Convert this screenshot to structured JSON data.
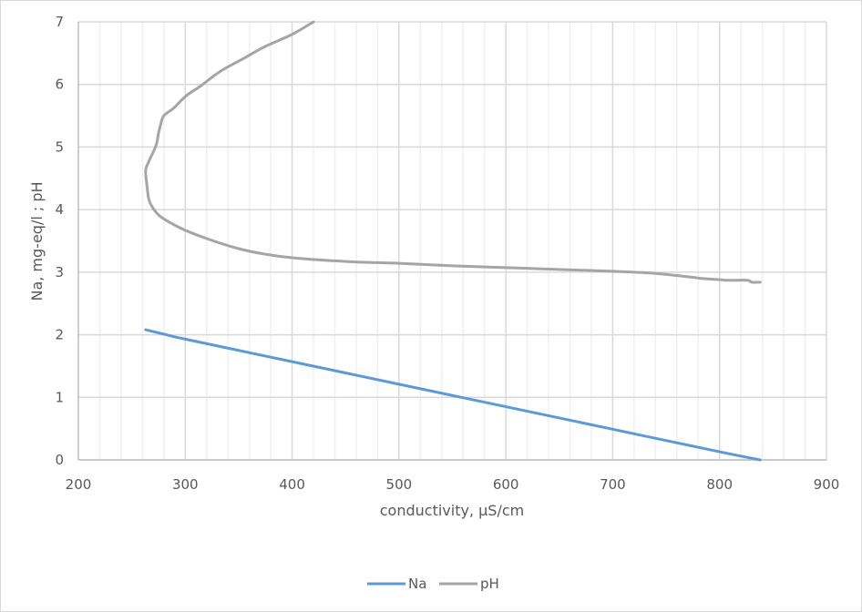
{
  "chart_data": {
    "type": "scatter",
    "title": "",
    "xlabel": "conductivity, µS/cm",
    "ylabel": "Na, mg-eq/l ;  pH",
    "xlim": [
      200,
      900
    ],
    "ylim": [
      0,
      7
    ],
    "x_ticks": [
      "200",
      "300",
      "400",
      "500",
      "600",
      "700",
      "800",
      "900"
    ],
    "y_ticks": [
      "0",
      "1",
      "2",
      "3",
      "4",
      "5",
      "6",
      "7"
    ],
    "grid": {
      "major": true,
      "minor_x": true,
      "minor_x_step": 20
    },
    "legend_position": "bottom",
    "series": [
      {
        "name": "Na",
        "color": "#5b9bd5",
        "x": [
          263,
          280,
          300,
          400,
          500,
          600,
          700,
          800,
          838
        ],
        "y": [
          2.08,
          2.01,
          1.93,
          1.57,
          1.21,
          0.85,
          0.49,
          0.13,
          0.0
        ]
      },
      {
        "name": "pH",
        "color": "#a5a5a5",
        "x": [
          420,
          400,
          374,
          353,
          332,
          314,
          301,
          289,
          280,
          277,
          275,
          273,
          270,
          266,
          263,
          264,
          266,
          270,
          276,
          284,
          300,
          323,
          349,
          374,
          400,
          451,
          502,
          553,
          604,
          655,
          706,
          740,
          774,
          783,
          800,
          808,
          826,
          830,
          838
        ],
        "y": [
          7.0,
          6.8,
          6.6,
          6.4,
          6.2,
          5.97,
          5.82,
          5.62,
          5.5,
          5.36,
          5.22,
          5.04,
          4.92,
          4.77,
          4.63,
          4.41,
          4.16,
          4.02,
          3.9,
          3.81,
          3.67,
          3.52,
          3.38,
          3.29,
          3.23,
          3.17,
          3.14,
          3.1,
          3.07,
          3.04,
          3.01,
          2.98,
          2.92,
          2.9,
          2.88,
          2.87,
          2.87,
          2.84,
          2.84
        ]
      }
    ]
  },
  "legend": [
    {
      "label": "Na",
      "color": "#5b9bd5"
    },
    {
      "label": "pH",
      "color": "#a5a5a5"
    }
  ]
}
